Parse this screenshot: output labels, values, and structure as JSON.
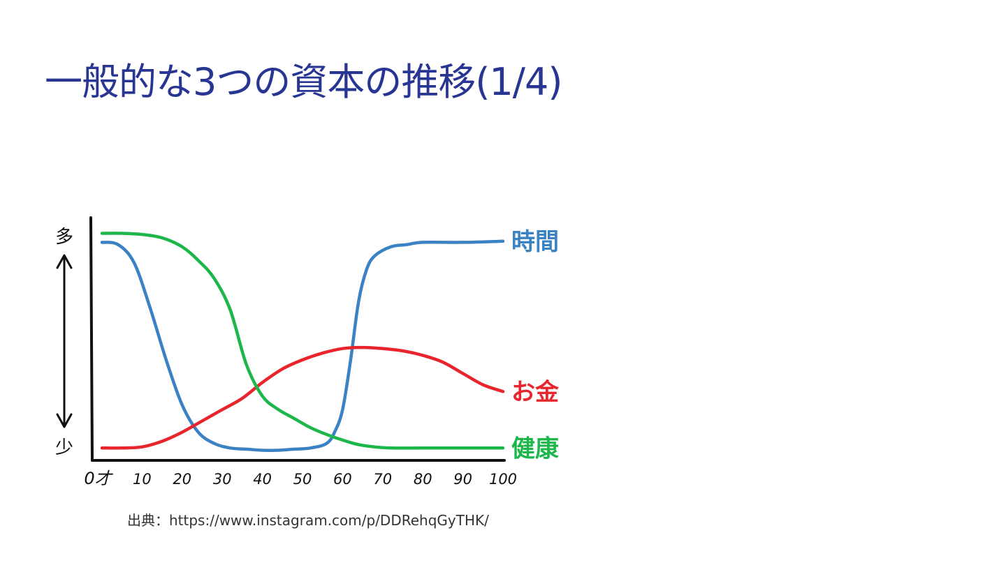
{
  "slide": {
    "title": "一般的な3つの資本の推移(1/4)",
    "source": "出典：https://www.instagram.com/p/DDRehqGyTHK/"
  },
  "chart_data": {
    "type": "line",
    "xlabel": "",
    "ylabel": "",
    "y_top_label": "多",
    "y_bottom_label": "少",
    "x_ticks": [
      "0才",
      "10",
      "20",
      "30",
      "40",
      "50",
      "60",
      "70",
      "80",
      "90",
      "100"
    ],
    "xlim": [
      0,
      100
    ],
    "ylim": [
      0,
      100
    ],
    "grid": false,
    "legend": "inline-right",
    "series": [
      {
        "name": "時間",
        "color": "#3a82c4",
        "x": [
          0,
          4,
          8,
          12,
          16,
          20,
          24,
          28,
          32,
          36,
          40,
          44,
          48,
          52,
          56,
          58,
          60,
          62,
          64,
          66,
          68,
          72,
          76,
          80,
          90,
          100
        ],
        "y": [
          94,
          93,
          85,
          65,
          42,
          22,
          10,
          5,
          3,
          2.5,
          2,
          2,
          2.5,
          3,
          5,
          10,
          20,
          42,
          68,
          82,
          88,
          92,
          93,
          94,
          94,
          94.5
        ]
      },
      {
        "name": "お金",
        "color": "#e8242c",
        "x": [
          0,
          5,
          10,
          15,
          20,
          25,
          30,
          35,
          40,
          45,
          50,
          55,
          60,
          65,
          70,
          75,
          80,
          85,
          90,
          95,
          100
        ],
        "y": [
          3,
          3,
          3.5,
          6,
          10,
          15,
          20,
          25,
          32,
          38,
          42,
          45,
          47,
          47.5,
          47,
          46,
          44,
          41,
          36,
          31,
          28
        ]
      },
      {
        "name": "健康",
        "color": "#1db64a",
        "x": [
          0,
          5,
          10,
          15,
          20,
          24,
          28,
          32,
          36,
          40,
          44,
          48,
          52,
          56,
          60,
          64,
          68,
          72,
          80,
          90,
          100
        ],
        "y": [
          98,
          98,
          97.5,
          96,
          92,
          86,
          78,
          64,
          40,
          26,
          20,
          16,
          12,
          9,
          6.5,
          4.5,
          3.5,
          3,
          3,
          3,
          3
        ]
      }
    ]
  }
}
